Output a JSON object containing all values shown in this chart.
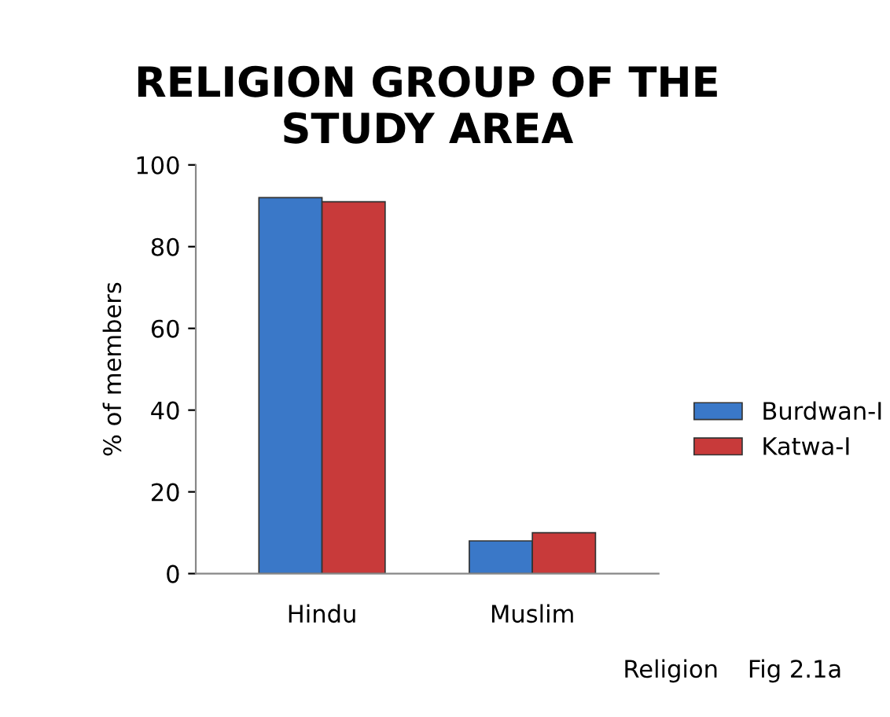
{
  "chart_data": {
    "type": "bar",
    "title": "RELIGION GROUP OF THE\nSTUDY AREA",
    "xlabel": "Religion",
    "ylabel": "% of members",
    "categories": [
      "Hindu",
      "Muslim"
    ],
    "series": [
      {
        "name": "Burdwan-I",
        "color": "#3a78c8",
        "values": [
          92,
          8
        ]
      },
      {
        "name": "Katwa-I",
        "color": "#c83a3a",
        "values": [
          91,
          10
        ]
      }
    ],
    "ylim": [
      0,
      100
    ],
    "yticks": [
      0,
      20,
      40,
      60,
      80,
      100
    ],
    "grid": false,
    "legend": "right",
    "annotations": [
      "Fig 2.1a"
    ]
  }
}
